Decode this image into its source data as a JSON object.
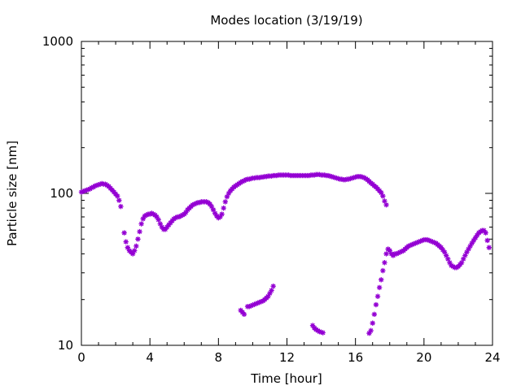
{
  "chart_data": {
    "type": "scatter",
    "title": "Modes location (3/19/19)",
    "xlabel": "Time [hour]",
    "ylabel": "Particle size [nm]",
    "xlim": [
      0,
      24
    ],
    "ylim": [
      10,
      1000
    ],
    "yscale": "log",
    "grid": false,
    "legend": "none",
    "marker": "asterisk",
    "color": "#9400d3",
    "x_ticks": [
      "0",
      "4",
      "8",
      "12",
      "16",
      "20",
      "24"
    ],
    "y_ticks": [
      "10",
      "100",
      "1000"
    ],
    "series": [
      {
        "points": [
          [
            0.0,
            102
          ],
          [
            0.1,
            103
          ],
          [
            0.2,
            104
          ],
          [
            0.3,
            105
          ],
          [
            0.4,
            106
          ],
          [
            0.5,
            107
          ],
          [
            0.6,
            109
          ],
          [
            0.7,
            110
          ],
          [
            0.8,
            112
          ],
          [
            0.9,
            113
          ],
          [
            1.0,
            114
          ],
          [
            1.1,
            115
          ],
          [
            1.2,
            116
          ],
          [
            1.3,
            115
          ],
          [
            1.4,
            115
          ],
          [
            1.5,
            113
          ],
          [
            1.6,
            111
          ],
          [
            1.7,
            108
          ],
          [
            1.8,
            105
          ],
          [
            1.9,
            102
          ],
          [
            2.0,
            99
          ],
          [
            2.1,
            96
          ],
          [
            2.2,
            90
          ],
          [
            2.3,
            82
          ],
          [
            2.5,
            55
          ],
          [
            2.6,
            48
          ],
          [
            2.7,
            44
          ],
          [
            2.8,
            42
          ],
          [
            2.9,
            41
          ],
          [
            3.0,
            40
          ],
          [
            3.1,
            42
          ],
          [
            3.2,
            45
          ],
          [
            3.3,
            50
          ],
          [
            3.4,
            56
          ],
          [
            3.5,
            63
          ],
          [
            3.6,
            68
          ],
          [
            3.7,
            71
          ],
          [
            3.8,
            72
          ],
          [
            3.9,
            73
          ],
          [
            4.0,
            73
          ],
          [
            4.1,
            74
          ],
          [
            4.2,
            73
          ],
          [
            4.3,
            72
          ],
          [
            4.4,
            70
          ],
          [
            4.5,
            67
          ],
          [
            4.6,
            63
          ],
          [
            4.7,
            60
          ],
          [
            4.8,
            58
          ],
          [
            4.9,
            58
          ],
          [
            5.0,
            60
          ],
          [
            5.1,
            62
          ],
          [
            5.2,
            64
          ],
          [
            5.3,
            66
          ],
          [
            5.4,
            68
          ],
          [
            5.5,
            69
          ],
          [
            5.6,
            70
          ],
          [
            5.7,
            70
          ],
          [
            5.8,
            71
          ],
          [
            5.9,
            72
          ],
          [
            6.0,
            73
          ],
          [
            6.1,
            75
          ],
          [
            6.2,
            78
          ],
          [
            6.3,
            80
          ],
          [
            6.4,
            82
          ],
          [
            6.5,
            84
          ],
          [
            6.6,
            85
          ],
          [
            6.7,
            86
          ],
          [
            6.8,
            87
          ],
          [
            6.9,
            87
          ],
          [
            7.0,
            88
          ],
          [
            7.1,
            88
          ],
          [
            7.2,
            88
          ],
          [
            7.3,
            88
          ],
          [
            7.4,
            87
          ],
          [
            7.5,
            85
          ],
          [
            7.6,
            82
          ],
          [
            7.7,
            78
          ],
          [
            7.8,
            74
          ],
          [
            7.9,
            71
          ],
          [
            8.0,
            69
          ],
          [
            8.1,
            70
          ],
          [
            8.2,
            73
          ],
          [
            8.3,
            80
          ],
          [
            8.4,
            88
          ],
          [
            8.5,
            95
          ],
          [
            8.6,
            100
          ],
          [
            8.7,
            104
          ],
          [
            8.8,
            107
          ],
          [
            8.9,
            110
          ],
          [
            9.0,
            112
          ],
          [
            9.1,
            114
          ],
          [
            9.2,
            116
          ],
          [
            9.3,
            118
          ],
          [
            9.4,
            120
          ],
          [
            9.5,
            121
          ],
          [
            9.6,
            123
          ],
          [
            9.7,
            124
          ],
          [
            9.8,
            124
          ],
          [
            9.9,
            125
          ],
          [
            10.0,
            126
          ],
          [
            10.1,
            126
          ],
          [
            10.2,
            127
          ],
          [
            10.3,
            127
          ],
          [
            10.4,
            127
          ],
          [
            10.5,
            128
          ],
          [
            10.6,
            128
          ],
          [
            10.7,
            129
          ],
          [
            10.8,
            129
          ],
          [
            10.9,
            130
          ],
          [
            11.0,
            130
          ],
          [
            11.1,
            130
          ],
          [
            11.2,
            131
          ],
          [
            11.3,
            131
          ],
          [
            11.4,
            131
          ],
          [
            11.5,
            132
          ],
          [
            11.6,
            132
          ],
          [
            11.7,
            132
          ],
          [
            11.8,
            132
          ],
          [
            11.9,
            132
          ],
          [
            12.0,
            132
          ],
          [
            12.1,
            132
          ],
          [
            12.2,
            131
          ],
          [
            12.3,
            131
          ],
          [
            12.4,
            131
          ],
          [
            12.5,
            131
          ],
          [
            12.6,
            131
          ],
          [
            12.7,
            131
          ],
          [
            12.8,
            131
          ],
          [
            12.9,
            131
          ],
          [
            13.0,
            131
          ],
          [
            13.1,
            131
          ],
          [
            13.2,
            131
          ],
          [
            13.3,
            131
          ],
          [
            13.4,
            132
          ],
          [
            13.5,
            132
          ],
          [
            13.6,
            132
          ],
          [
            13.7,
            133
          ],
          [
            13.8,
            133
          ],
          [
            13.9,
            133
          ],
          [
            14.0,
            132
          ],
          [
            14.1,
            132
          ],
          [
            14.2,
            132
          ],
          [
            14.3,
            131
          ],
          [
            14.4,
            131
          ],
          [
            14.5,
            130
          ],
          [
            14.6,
            129
          ],
          [
            14.7,
            128
          ],
          [
            14.8,
            127
          ],
          [
            14.9,
            126
          ],
          [
            15.0,
            125
          ],
          [
            15.1,
            124
          ],
          [
            15.2,
            124
          ],
          [
            15.3,
            123
          ],
          [
            15.4,
            123
          ],
          [
            15.5,
            124
          ],
          [
            15.6,
            124
          ],
          [
            15.7,
            125
          ],
          [
            15.8,
            126
          ],
          [
            15.9,
            127
          ],
          [
            16.0,
            128
          ],
          [
            16.1,
            129
          ],
          [
            16.2,
            129
          ],
          [
            16.3,
            129
          ],
          [
            16.4,
            128
          ],
          [
            16.5,
            127
          ],
          [
            16.6,
            125
          ],
          [
            16.7,
            123
          ],
          [
            16.8,
            120
          ],
          [
            16.9,
            117
          ],
          [
            17.0,
            115
          ],
          [
            17.1,
            112
          ],
          [
            17.2,
            110
          ],
          [
            17.3,
            107
          ],
          [
            17.4,
            104
          ],
          [
            17.5,
            101
          ],
          [
            17.6,
            96
          ],
          [
            17.7,
            89
          ],
          [
            17.8,
            84
          ],
          [
            9.3,
            17
          ],
          [
            9.4,
            16.5
          ],
          [
            9.5,
            16
          ],
          [
            9.7,
            18
          ],
          [
            9.8,
            18
          ],
          [
            9.9,
            18.2
          ],
          [
            10.0,
            18.4
          ],
          [
            10.1,
            18.6
          ],
          [
            10.2,
            18.8
          ],
          [
            10.3,
            19
          ],
          [
            10.4,
            19.2
          ],
          [
            10.5,
            19.4
          ],
          [
            10.6,
            19.6
          ],
          [
            10.7,
            20
          ],
          [
            10.8,
            20.5
          ],
          [
            10.9,
            21
          ],
          [
            11.0,
            22
          ],
          [
            11.1,
            23
          ],
          [
            11.2,
            24.5
          ],
          [
            13.5,
            13.5
          ],
          [
            13.6,
            13
          ],
          [
            13.7,
            12.7
          ],
          [
            13.8,
            12.5
          ],
          [
            13.9,
            12.3
          ],
          [
            14.0,
            12.2
          ],
          [
            14.1,
            12.1
          ],
          [
            16.8,
            12
          ],
          [
            16.9,
            12.5
          ],
          [
            17.0,
            14
          ],
          [
            17.1,
            16
          ],
          [
            17.2,
            18.5
          ],
          [
            17.3,
            21
          ],
          [
            17.4,
            24
          ],
          [
            17.5,
            27
          ],
          [
            17.6,
            31
          ],
          [
            17.7,
            35
          ],
          [
            17.8,
            40
          ],
          [
            17.9,
            43
          ],
          [
            18.0,
            42
          ],
          [
            18.1,
            40
          ],
          [
            18.2,
            39
          ],
          [
            18.3,
            40
          ],
          [
            18.4,
            40
          ],
          [
            18.5,
            40.5
          ],
          [
            18.6,
            41
          ],
          [
            18.7,
            41.5
          ],
          [
            18.8,
            42
          ],
          [
            18.9,
            43
          ],
          [
            19.0,
            44
          ],
          [
            19.1,
            45
          ],
          [
            19.2,
            45.5
          ],
          [
            19.3,
            46
          ],
          [
            19.4,
            46.5
          ],
          [
            19.5,
            47
          ],
          [
            19.6,
            47.5
          ],
          [
            19.7,
            48
          ],
          [
            19.8,
            48.5
          ],
          [
            19.9,
            49
          ],
          [
            20.0,
            49.5
          ],
          [
            20.1,
            49.5
          ],
          [
            20.2,
            49.5
          ],
          [
            20.3,
            49
          ],
          [
            20.4,
            48.5
          ],
          [
            20.5,
            48
          ],
          [
            20.6,
            47.5
          ],
          [
            20.7,
            47
          ],
          [
            20.8,
            46
          ],
          [
            20.9,
            45
          ],
          [
            21.0,
            44
          ],
          [
            21.1,
            42.5
          ],
          [
            21.2,
            41
          ],
          [
            21.3,
            39
          ],
          [
            21.4,
            37
          ],
          [
            21.5,
            35
          ],
          [
            21.6,
            33.5
          ],
          [
            21.7,
            33
          ],
          [
            21.8,
            32.5
          ],
          [
            21.9,
            32.5
          ],
          [
            22.0,
            33
          ],
          [
            22.1,
            34
          ],
          [
            22.2,
            35
          ],
          [
            22.3,
            37
          ],
          [
            22.4,
            39
          ],
          [
            22.5,
            41
          ],
          [
            22.6,
            43
          ],
          [
            22.7,
            45
          ],
          [
            22.8,
            47
          ],
          [
            22.9,
            49
          ],
          [
            23.0,
            51
          ],
          [
            23.1,
            53
          ],
          [
            23.2,
            55
          ],
          [
            23.3,
            56
          ],
          [
            23.4,
            57
          ],
          [
            23.5,
            57
          ],
          [
            23.6,
            55
          ],
          [
            23.7,
            49
          ],
          [
            23.8,
            44
          ]
        ]
      }
    ]
  }
}
